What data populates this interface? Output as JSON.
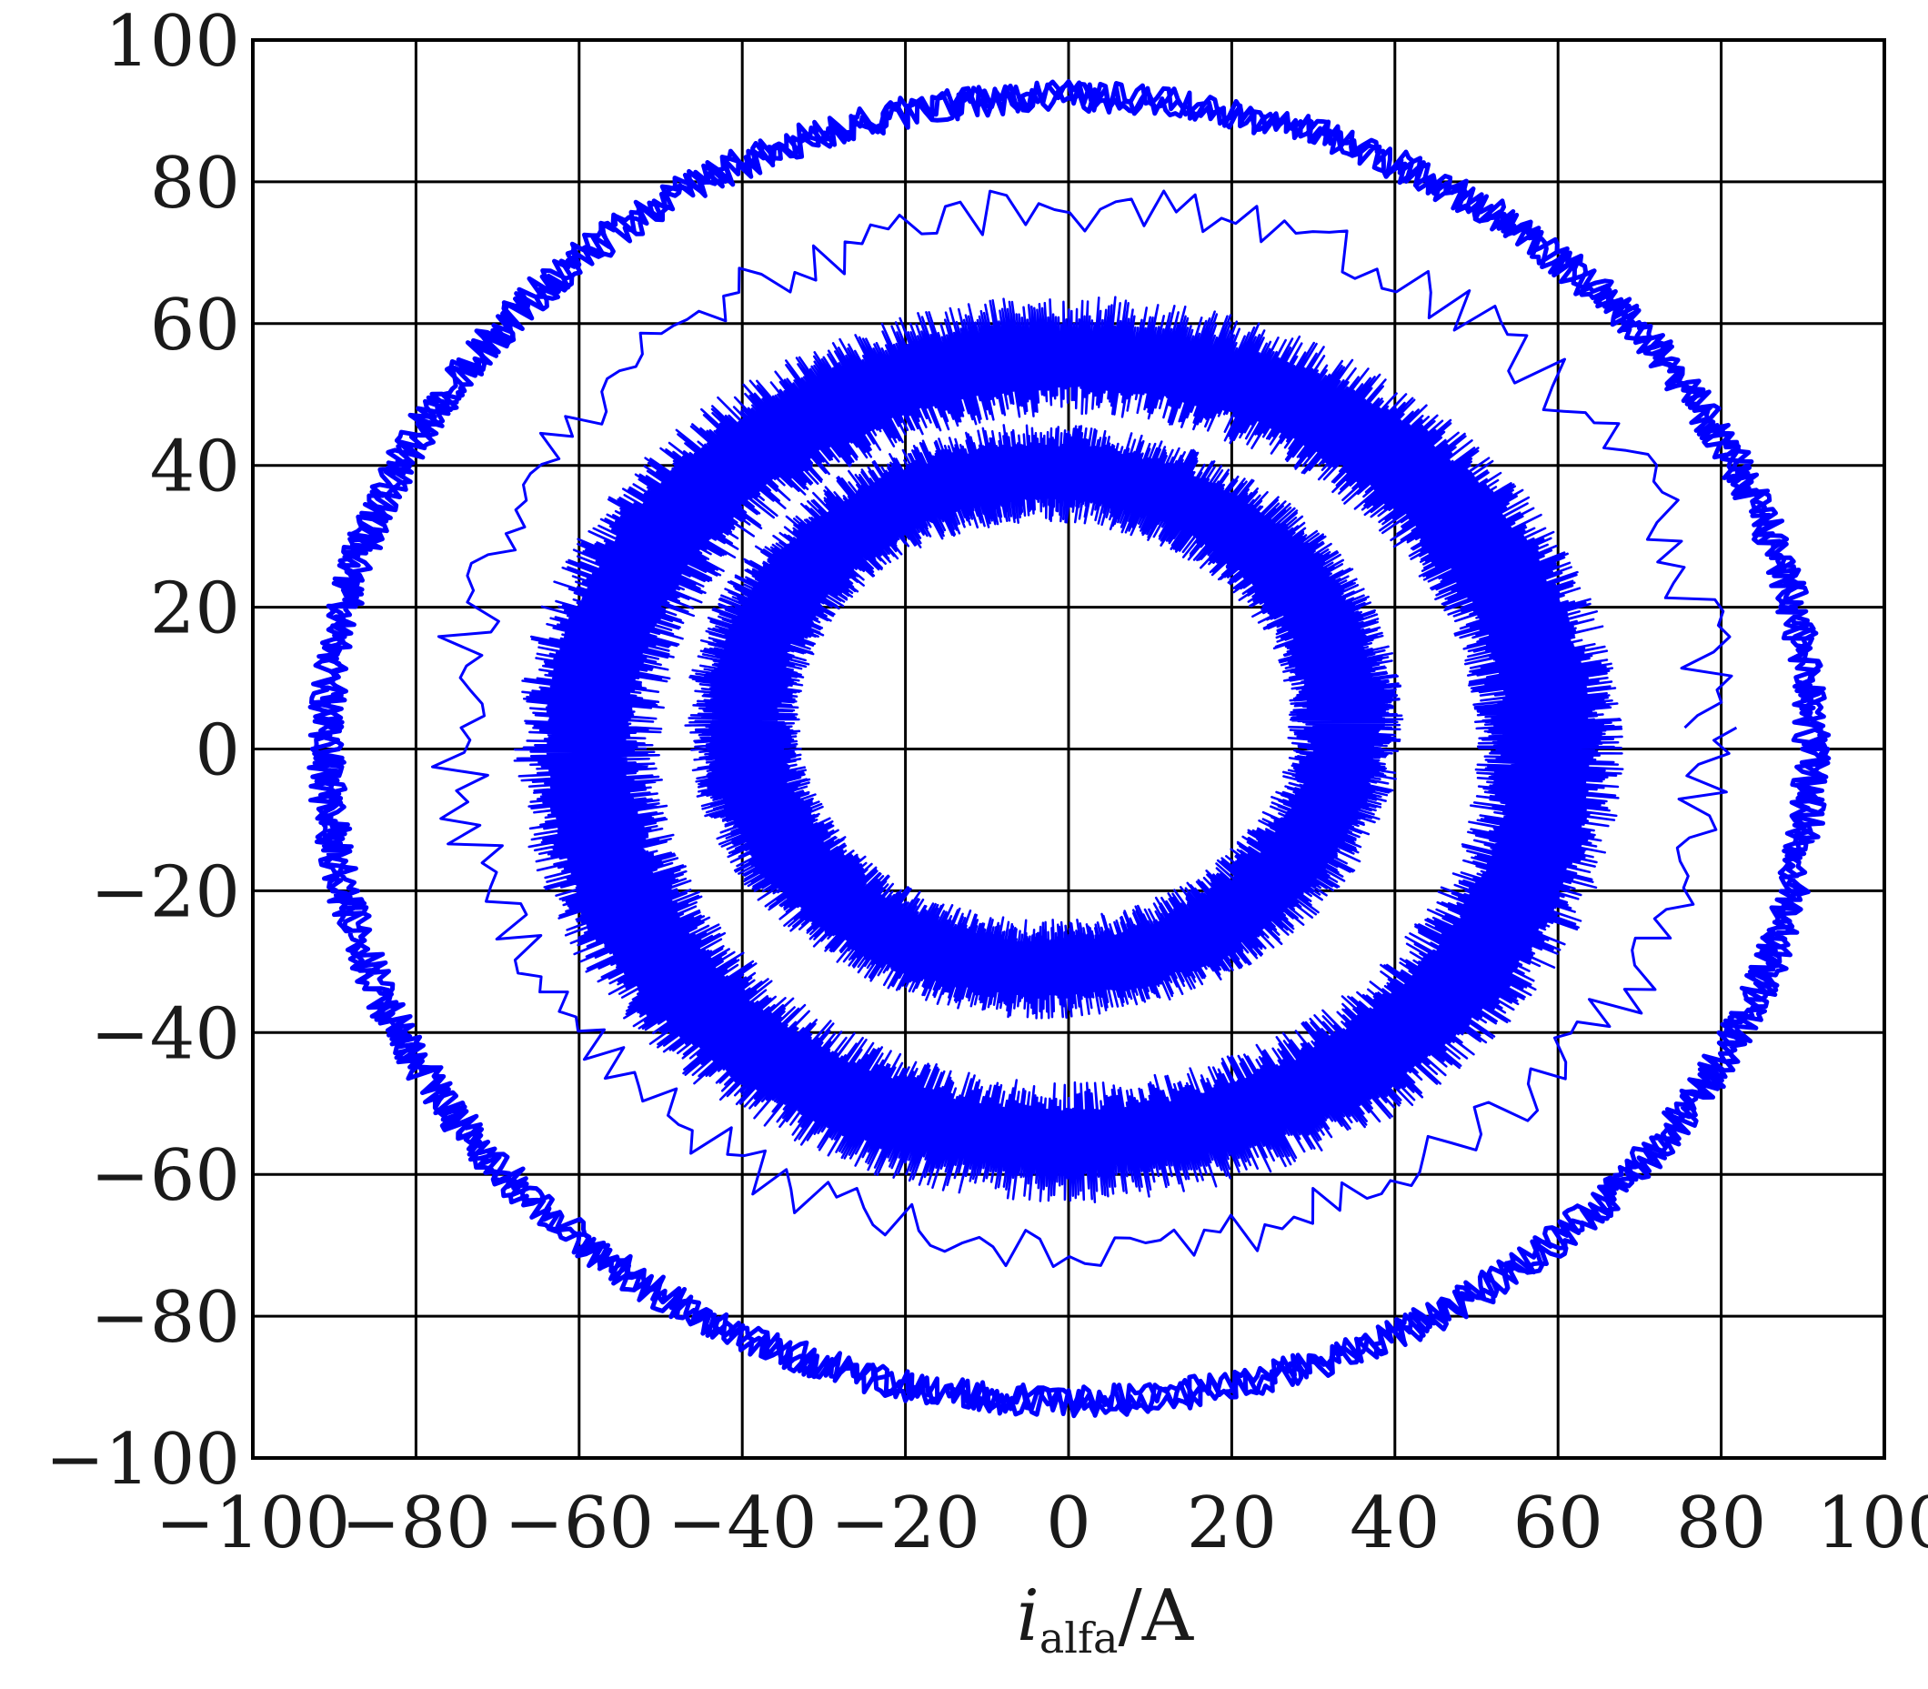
{
  "chart_data": {
    "type": "line",
    "title": "",
    "xlabel": {
      "main": "i",
      "sub": "alfa",
      "unit": "/A"
    },
    "ylabel": "",
    "xlim": [
      -100,
      100
    ],
    "ylim": [
      -100,
      100
    ],
    "xticks": [
      -100,
      -80,
      -60,
      -40,
      -20,
      0,
      20,
      40,
      60,
      80,
      100
    ],
    "yticks": [
      -100,
      -80,
      -60,
      -40,
      -20,
      0,
      20,
      40,
      60,
      80,
      100
    ],
    "grid": true,
    "line_color": "#0000ff",
    "series": [
      {
        "shape": "noisy-ellipse",
        "center": [
          0,
          0
        ],
        "radius_x": 91,
        "radius_y": 92,
        "noise": 2.2,
        "turns": 1,
        "density": "thin-band"
      },
      {
        "shape": "noisy-ellipse",
        "center": [
          2,
          3
        ],
        "radius_x": 77,
        "radius_y": 73,
        "noise": 3.5,
        "turns": 1,
        "density": "single-trace"
      },
      {
        "shape": "noisy-annulus",
        "center": [
          0,
          0
        ],
        "radius_x_inner": 50,
        "radius_x_outer": 68,
        "radius_y_inner": 47,
        "radius_y_outer": 64,
        "density": "filled"
      },
      {
        "shape": "noisy-annulus",
        "center": [
          -3,
          4
        ],
        "radius_x_inner": 30,
        "radius_x_outer": 44,
        "radius_y_inner": 28,
        "radius_y_outer": 42,
        "density": "filled"
      }
    ]
  }
}
